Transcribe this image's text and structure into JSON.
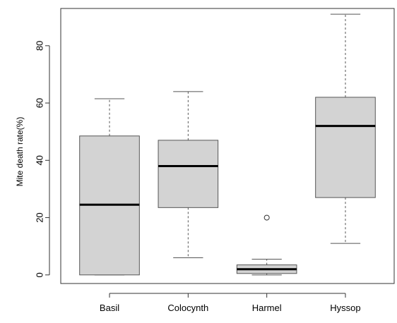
{
  "chart_data": {
    "type": "boxplot",
    "title": "",
    "xlabel": "",
    "ylabel": "Mite death rate(%)",
    "ylim": [
      -3,
      93
    ],
    "yticks": [
      0,
      20,
      40,
      60,
      80
    ],
    "categories": [
      "Basil",
      "Colocynth",
      "Harmel",
      "Hyssop"
    ],
    "boxes": [
      {
        "name": "Basil",
        "min": 0,
        "q1": 0,
        "median": 24.5,
        "q3": 48.5,
        "max": 61.5,
        "outliers": []
      },
      {
        "name": "Colocynth",
        "min": 6,
        "q1": 23.5,
        "median": 38,
        "q3": 47,
        "max": 64,
        "outliers": []
      },
      {
        "name": "Harmel",
        "min": 0,
        "q1": 0.5,
        "median": 2,
        "q3": 3.5,
        "max": 5.5,
        "outliers": [
          20
        ]
      },
      {
        "name": "Hyssop",
        "min": 11,
        "q1": 27,
        "median": 52,
        "q3": 62,
        "max": 91,
        "outliers": []
      }
    ],
    "grid": false,
    "legend": "none",
    "colors": {
      "box_fill": "#d3d3d3",
      "box_stroke": "#555555",
      "median": "#000000",
      "axis": "#333333"
    }
  }
}
